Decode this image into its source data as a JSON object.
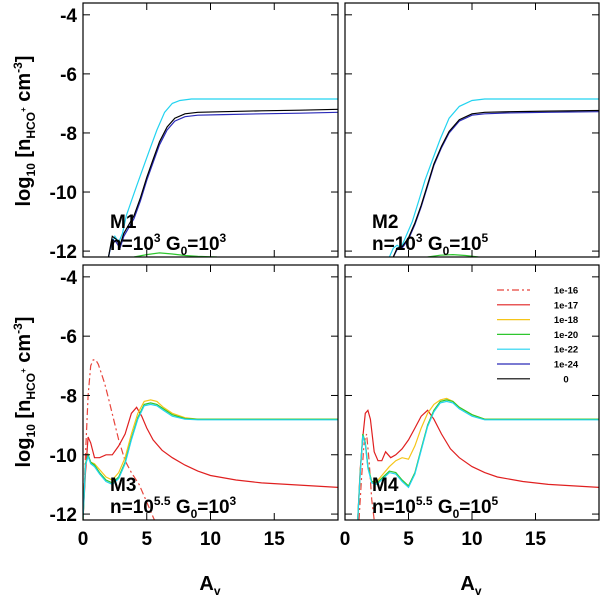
{
  "chart_data": {
    "type": "line",
    "title": "",
    "xlabel": "A",
    "xlabel_sub": "v",
    "ylabel": "log",
    "ylabel_sub": "10",
    "ylabel_rest": "[n",
    "ylabel_species": "HCO",
    "ylabel_species_sup": "+",
    "ylabel_units": "cm",
    "ylabel_units_sup": "-3",
    "ylabel_close": "]",
    "xlim": [
      0,
      20
    ],
    "ylim": [
      -12.2,
      -3.6
    ],
    "xticks": [
      0,
      5,
      10,
      15
    ],
    "yticks": [
      -4,
      -6,
      -8,
      -10,
      -12
    ],
    "legend": {
      "placement": "bottom-right panel, top-right",
      "entries": [
        {
          "label": "1e-16",
          "color": "#e8453c",
          "dash": "dashdot"
        },
        {
          "label": "1e-17",
          "color": "#e02020",
          "dash": "solid"
        },
        {
          "label": "1e-18",
          "color": "#f5c518",
          "dash": "solid"
        },
        {
          "label": "1e-20",
          "color": "#2ec62e",
          "dash": "solid"
        },
        {
          "label": "1e-22",
          "color": "#22d3f0",
          "dash": "solid"
        },
        {
          "label": "1e-24",
          "color": "#2a2ab8",
          "dash": "solid"
        },
        {
          "label": "0",
          "color": "#000000",
          "dash": "solid"
        }
      ]
    },
    "panels": [
      {
        "id": "M1",
        "name": "M1",
        "n_label": "n=10",
        "n_exp": "3",
        "g_label": "G",
        "g_sub": "0",
        "g_eq": "=10",
        "g_exp": "3",
        "series": [
          {
            "name": "1e-22",
            "color": "#22d3f0",
            "dash": "solid",
            "x": [
              2.0,
              2.2,
              2.5,
              2.8,
              3.1,
              3.4,
              3.8,
              4.2,
              4.7,
              5.2,
              5.8,
              6.4,
              7.0,
              7.6,
              8.5,
              10,
              13,
              16,
              20
            ],
            "y": [
              -12.2,
              -11.8,
              -11.5,
              -11.7,
              -11.4,
              -10.8,
              -10.3,
              -9.8,
              -9.2,
              -8.6,
              -7.9,
              -7.3,
              -7.0,
              -6.9,
              -6.85,
              -6.85,
              -6.85,
              -6.85,
              -6.85
            ]
          },
          {
            "name": "1e-24",
            "color": "#2a2ab8",
            "dash": "solid",
            "x": [
              2.0,
              2.3,
              2.6,
              2.9,
              3.2,
              3.6,
              4.0,
              4.5,
              5.0,
              5.5,
              6.0,
              6.6,
              7.2,
              8.0,
              9,
              11,
              14,
              17,
              20
            ],
            "y": [
              -12.2,
              -11.6,
              -11.7,
              -11.9,
              -11.5,
              -11.2,
              -10.9,
              -10.3,
              -9.6,
              -9.0,
              -8.4,
              -7.9,
              -7.6,
              -7.45,
              -7.4,
              -7.38,
              -7.35,
              -7.33,
              -7.3
            ]
          },
          {
            "name": "0",
            "color": "#000000",
            "dash": "solid",
            "x": [
              2.0,
              2.3,
              2.6,
              2.9,
              3.2,
              3.6,
              4.0,
              4.5,
              5.0,
              5.5,
              6.0,
              6.6,
              7.2,
              8.0,
              9,
              11,
              14,
              17,
              20
            ],
            "y": [
              -12.2,
              -11.5,
              -11.6,
              -11.8,
              -11.4,
              -11.1,
              -10.8,
              -10.2,
              -9.5,
              -8.9,
              -8.3,
              -7.8,
              -7.5,
              -7.35,
              -7.3,
              -7.28,
              -7.25,
              -7.23,
              -7.2
            ]
          },
          {
            "name": "1e-20",
            "color": "#2ec62e",
            "dash": "solid",
            "x": [
              4.0,
              5.0,
              6.0,
              7.0,
              8.0,
              9.0,
              10.5
            ],
            "y": [
              -12.2,
              -12.12,
              -12.06,
              -12.1,
              -12.15,
              -12.18,
              -12.2
            ]
          }
        ]
      },
      {
        "id": "M2",
        "name": "M2",
        "n_label": "n=10",
        "n_exp": "3",
        "g_label": "G",
        "g_sub": "0",
        "g_eq": "=10",
        "g_exp": "5",
        "series": [
          {
            "name": "1e-22",
            "color": "#22d3f0",
            "dash": "solid",
            "x": [
              3.5,
              3.8,
              4.1,
              4.4,
              4.8,
              5.3,
              5.8,
              6.3,
              6.9,
              7.5,
              8.2,
              9.0,
              10,
              11,
              13,
              16,
              20
            ],
            "y": [
              -12.2,
              -11.9,
              -11.8,
              -11.9,
              -11.5,
              -11.0,
              -10.3,
              -9.6,
              -8.9,
              -8.2,
              -7.5,
              -7.1,
              -6.9,
              -6.85,
              -6.85,
              -6.85,
              -6.85
            ]
          },
          {
            "name": "1e-24",
            "color": "#2a2ab8",
            "dash": "solid",
            "x": [
              3.8,
              4.1,
              4.5,
              5.0,
              5.5,
              6.0,
              6.5,
              7.0,
              7.6,
              8.2,
              9.0,
              10,
              11,
              13,
              16,
              20
            ],
            "y": [
              -12.2,
              -11.95,
              -11.9,
              -11.6,
              -11.1,
              -10.5,
              -9.8,
              -9.1,
              -8.5,
              -8.0,
              -7.6,
              -7.4,
              -7.35,
              -7.32,
              -7.3,
              -7.28
            ]
          },
          {
            "name": "0",
            "color": "#000000",
            "dash": "solid",
            "x": [
              3.8,
              4.1,
              4.5,
              5.0,
              5.5,
              6.0,
              6.5,
              7.0,
              7.6,
              8.2,
              9.0,
              10,
              11,
              13,
              16,
              20
            ],
            "y": [
              -12.2,
              -11.9,
              -11.85,
              -11.55,
              -11.05,
              -10.45,
              -9.75,
              -9.05,
              -8.45,
              -7.95,
              -7.55,
              -7.35,
              -7.3,
              -7.28,
              -7.26,
              -7.24
            ]
          },
          {
            "name": "1e-20",
            "color": "#2ec62e",
            "dash": "solid",
            "x": [
              6.5,
              7.5,
              8.5,
              9.5,
              10.5
            ],
            "y": [
              -12.2,
              -12.14,
              -12.12,
              -12.15,
              -12.2
            ]
          }
        ]
      },
      {
        "id": "M3",
        "name": "M3",
        "n_label": "n=10",
        "n_exp": "5.5",
        "g_label": "G",
        "g_sub": "0",
        "g_eq": "=10",
        "g_exp": "3",
        "series": [
          {
            "name": "1e-16",
            "color": "#e8453c",
            "dash": "dashdot",
            "x": [
              0.0,
              0.2,
              0.4,
              0.6,
              0.8,
              1.0,
              1.2,
              1.4,
              1.7,
              2.0,
              2.4,
              2.8,
              3.3,
              3.8,
              4.4,
              5.0,
              5.6
            ],
            "y": [
              -12.2,
              -10.0,
              -8.0,
              -7.0,
              -6.8,
              -6.8,
              -6.95,
              -7.2,
              -7.6,
              -8.1,
              -8.8,
              -9.5,
              -10.2,
              -10.6,
              -11.0,
              -11.6,
              -12.2
            ]
          },
          {
            "name": "1e-17",
            "color": "#e02020",
            "dash": "solid",
            "x": [
              0.0,
              0.2,
              0.4,
              0.6,
              0.9,
              1.3,
              1.8,
              2.3,
              2.8,
              3.3,
              3.8,
              4.2,
              4.6,
              5.0,
              5.5,
              6.2,
              7,
              8,
              9,
              10,
              12,
              14,
              16,
              18,
              20
            ],
            "y": [
              -12.2,
              -10.6,
              -9.4,
              -9.6,
              -10.1,
              -10.1,
              -10.0,
              -10.0,
              -9.7,
              -9.3,
              -8.6,
              -8.4,
              -8.7,
              -9.1,
              -9.5,
              -9.85,
              -10.1,
              -10.35,
              -10.55,
              -10.7,
              -10.85,
              -10.95,
              -11.0,
              -11.05,
              -11.1
            ]
          },
          {
            "name": "1e-18",
            "color": "#f5c518",
            "dash": "solid",
            "x": [
              0.0,
              0.2,
              0.4,
              0.6,
              0.9,
              1.3,
              1.8,
              2.3,
              2.8,
              3.3,
              3.8,
              4.3,
              4.8,
              5.3,
              5.8,
              6.3,
              7.0,
              8.0,
              9.0,
              10,
              12,
              15,
              18,
              20
            ],
            "y": [
              -12.2,
              -10.3,
              -10.0,
              -10.25,
              -10.3,
              -10.5,
              -10.75,
              -10.85,
              -10.6,
              -10.1,
              -9.3,
              -8.6,
              -8.2,
              -8.15,
              -8.2,
              -8.4,
              -8.6,
              -8.75,
              -8.8,
              -8.8,
              -8.8,
              -8.8,
              -8.8,
              -8.8
            ]
          },
          {
            "name": "1e-20",
            "color": "#2ec62e",
            "dash": "solid",
            "x": [
              0.0,
              0.2,
              0.4,
              0.6,
              0.9,
              1.3,
              1.8,
              2.3,
              2.8,
              3.3,
              3.8,
              4.3,
              4.8,
              5.3,
              5.8,
              6.3,
              7.0,
              8.0,
              9.0,
              10,
              12,
              15,
              18,
              20
            ],
            "y": [
              -12.2,
              -10.3,
              -10.0,
              -10.25,
              -10.35,
              -10.6,
              -10.85,
              -10.95,
              -10.75,
              -10.25,
              -9.45,
              -8.75,
              -8.3,
              -8.25,
              -8.3,
              -8.45,
              -8.65,
              -8.78,
              -8.8,
              -8.8,
              -8.8,
              -8.8,
              -8.8,
              -8.8
            ]
          },
          {
            "name": "1e-22",
            "color": "#22d3f0",
            "dash": "solid",
            "x": [
              0.0,
              0.2,
              0.4,
              0.6,
              0.9,
              1.3,
              1.8,
              2.3,
              2.8,
              3.3,
              3.8,
              4.3,
              4.8,
              5.3,
              5.8,
              6.3,
              7.0,
              8.0,
              9.0,
              10,
              12,
              15,
              18,
              20
            ],
            "y": [
              -12.2,
              -10.35,
              -10.05,
              -10.3,
              -10.4,
              -10.65,
              -10.9,
              -11.0,
              -10.8,
              -10.3,
              -9.5,
              -8.8,
              -8.35,
              -8.3,
              -8.35,
              -8.5,
              -8.7,
              -8.8,
              -8.82,
              -8.82,
              -8.82,
              -8.82,
              -8.82,
              -8.82
            ]
          }
        ]
      },
      {
        "id": "M4",
        "name": "M4",
        "n_label": "n=10",
        "n_exp": "5.5",
        "g_label": "G",
        "g_sub": "0",
        "g_eq": "=10",
        "g_exp": "5",
        "series": [
          {
            "name": "1e-16",
            "color": "#e8453c",
            "dash": "dashdot",
            "x": [
              1.1,
              1.3,
              1.5,
              1.7,
              1.9,
              2.1,
              2.3
            ],
            "y": [
              -12.2,
              -10.8,
              -9.6,
              -9.3,
              -10.2,
              -11.5,
              -12.2
            ]
          },
          {
            "name": "1e-17",
            "color": "#e02020",
            "dash": "solid",
            "x": [
              1.0,
              1.2,
              1.4,
              1.6,
              1.8,
              2.0,
              2.3,
              2.6,
              2.9,
              3.2,
              3.6,
              4.0,
              4.5,
              5.0,
              5.5,
              6.0,
              6.5,
              7.0,
              7.6,
              8.3,
              9,
              10,
              11,
              12,
              14,
              16,
              18,
              20
            ],
            "y": [
              -12.2,
              -10.5,
              -9.4,
              -8.6,
              -8.5,
              -8.8,
              -9.9,
              -10.2,
              -10.2,
              -9.9,
              -10.1,
              -10.0,
              -9.8,
              -9.5,
              -9.1,
              -8.7,
              -8.5,
              -8.8,
              -9.3,
              -9.8,
              -10.1,
              -10.4,
              -10.6,
              -10.75,
              -10.9,
              -11.0,
              -11.05,
              -11.1
            ]
          },
          {
            "name": "1e-18",
            "color": "#f5c518",
            "dash": "solid",
            "x": [
              1.0,
              1.2,
              1.4,
              1.6,
              1.8,
              2.1,
              2.5,
              3.0,
              3.5,
              4.0,
              4.5,
              5.0,
              5.5,
              6.0,
              6.5,
              7.0,
              7.5,
              8.0,
              8.5,
              9.0,
              10,
              11,
              12,
              14,
              17,
              20
            ],
            "y": [
              -12.2,
              -10.6,
              -9.3,
              -9.6,
              -10.4,
              -10.9,
              -10.9,
              -10.65,
              -10.4,
              -10.2,
              -10.1,
              -10.15,
              -9.7,
              -9.1,
              -8.6,
              -8.3,
              -8.15,
              -8.1,
              -8.2,
              -8.4,
              -8.65,
              -8.8,
              -8.8,
              -8.8,
              -8.8,
              -8.8
            ]
          },
          {
            "name": "1e-20",
            "color": "#2ec62e",
            "dash": "solid",
            "x": [
              1.0,
              1.2,
              1.4,
              1.6,
              1.8,
              2.1,
              2.5,
              3.0,
              3.5,
              4.0,
              4.5,
              5.0,
              5.5,
              6.0,
              6.5,
              7.0,
              7.5,
              8.0,
              8.5,
              9.0,
              10,
              11,
              12,
              14,
              17,
              20
            ],
            "y": [
              -12.2,
              -10.6,
              -9.3,
              -9.6,
              -10.4,
              -10.9,
              -10.95,
              -10.75,
              -10.55,
              -10.6,
              -10.85,
              -11.05,
              -10.6,
              -9.8,
              -9.0,
              -8.5,
              -8.2,
              -8.15,
              -8.2,
              -8.4,
              -8.65,
              -8.8,
              -8.8,
              -8.8,
              -8.8,
              -8.8
            ]
          },
          {
            "name": "1e-22",
            "color": "#22d3f0",
            "dash": "solid",
            "x": [
              1.0,
              1.2,
              1.4,
              1.6,
              1.8,
              2.1,
              2.5,
              3.0,
              3.5,
              4.0,
              4.5,
              5.0,
              5.5,
              6.0,
              6.5,
              7.0,
              7.5,
              8.0,
              8.5,
              9.0,
              10,
              11,
              12,
              14,
              17,
              20
            ],
            "y": [
              -12.2,
              -10.65,
              -9.35,
              -9.65,
              -10.45,
              -10.95,
              -11.0,
              -10.8,
              -10.6,
              -10.65,
              -10.9,
              -11.1,
              -10.65,
              -9.85,
              -9.05,
              -8.55,
              -8.25,
              -8.2,
              -8.25,
              -8.45,
              -8.7,
              -8.82,
              -8.82,
              -8.82,
              -8.82,
              -8.82
            ]
          }
        ]
      }
    ]
  }
}
